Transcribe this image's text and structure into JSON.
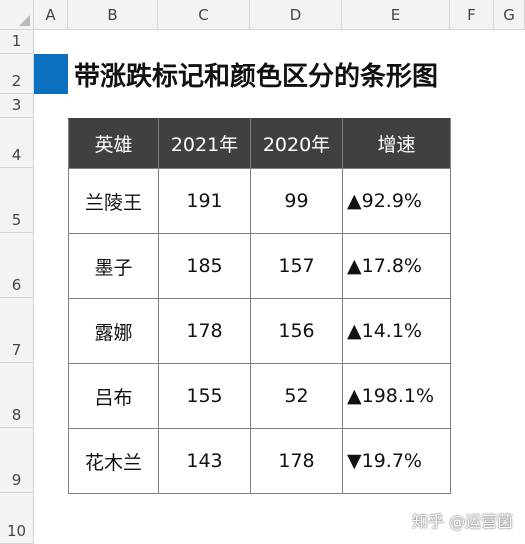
{
  "sheet": {
    "columns": [
      "A",
      "B",
      "C",
      "D",
      "E",
      "F",
      "G"
    ],
    "rows": [
      "1",
      "2",
      "3",
      "4",
      "5",
      "6",
      "7",
      "8",
      "9",
      "10"
    ]
  },
  "title": "带涨跌标记和颜色区分的条形图",
  "table": {
    "headers": [
      "英雄",
      "2021年",
      "2020年",
      "增速"
    ],
    "rows": [
      {
        "name": "兰陵王",
        "y2021": "191",
        "y2020": "99",
        "marker": "▲",
        "rate": "92.9%",
        "dir": "up"
      },
      {
        "name": "墨子",
        "y2021": "185",
        "y2020": "157",
        "marker": "▲",
        "rate": "17.8%",
        "dir": "up"
      },
      {
        "name": "露娜",
        "y2021": "178",
        "y2020": "156",
        "marker": "▲",
        "rate": "14.1%",
        "dir": "up"
      },
      {
        "name": "吕布",
        "y2021": "155",
        "y2020": "52",
        "marker": "▲",
        "rate": "198.1%",
        "dir": "up"
      },
      {
        "name": "花木兰",
        "y2021": "143",
        "y2020": "178",
        "marker": "▼",
        "rate": "19.7%",
        "dir": "down"
      }
    ]
  },
  "colors": {
    "header_bg": "#404040",
    "accent": "#0b70c0",
    "up": "#c81e1e",
    "down": "#0b7f72"
  },
  "watermark": "知乎 @运营菌"
}
